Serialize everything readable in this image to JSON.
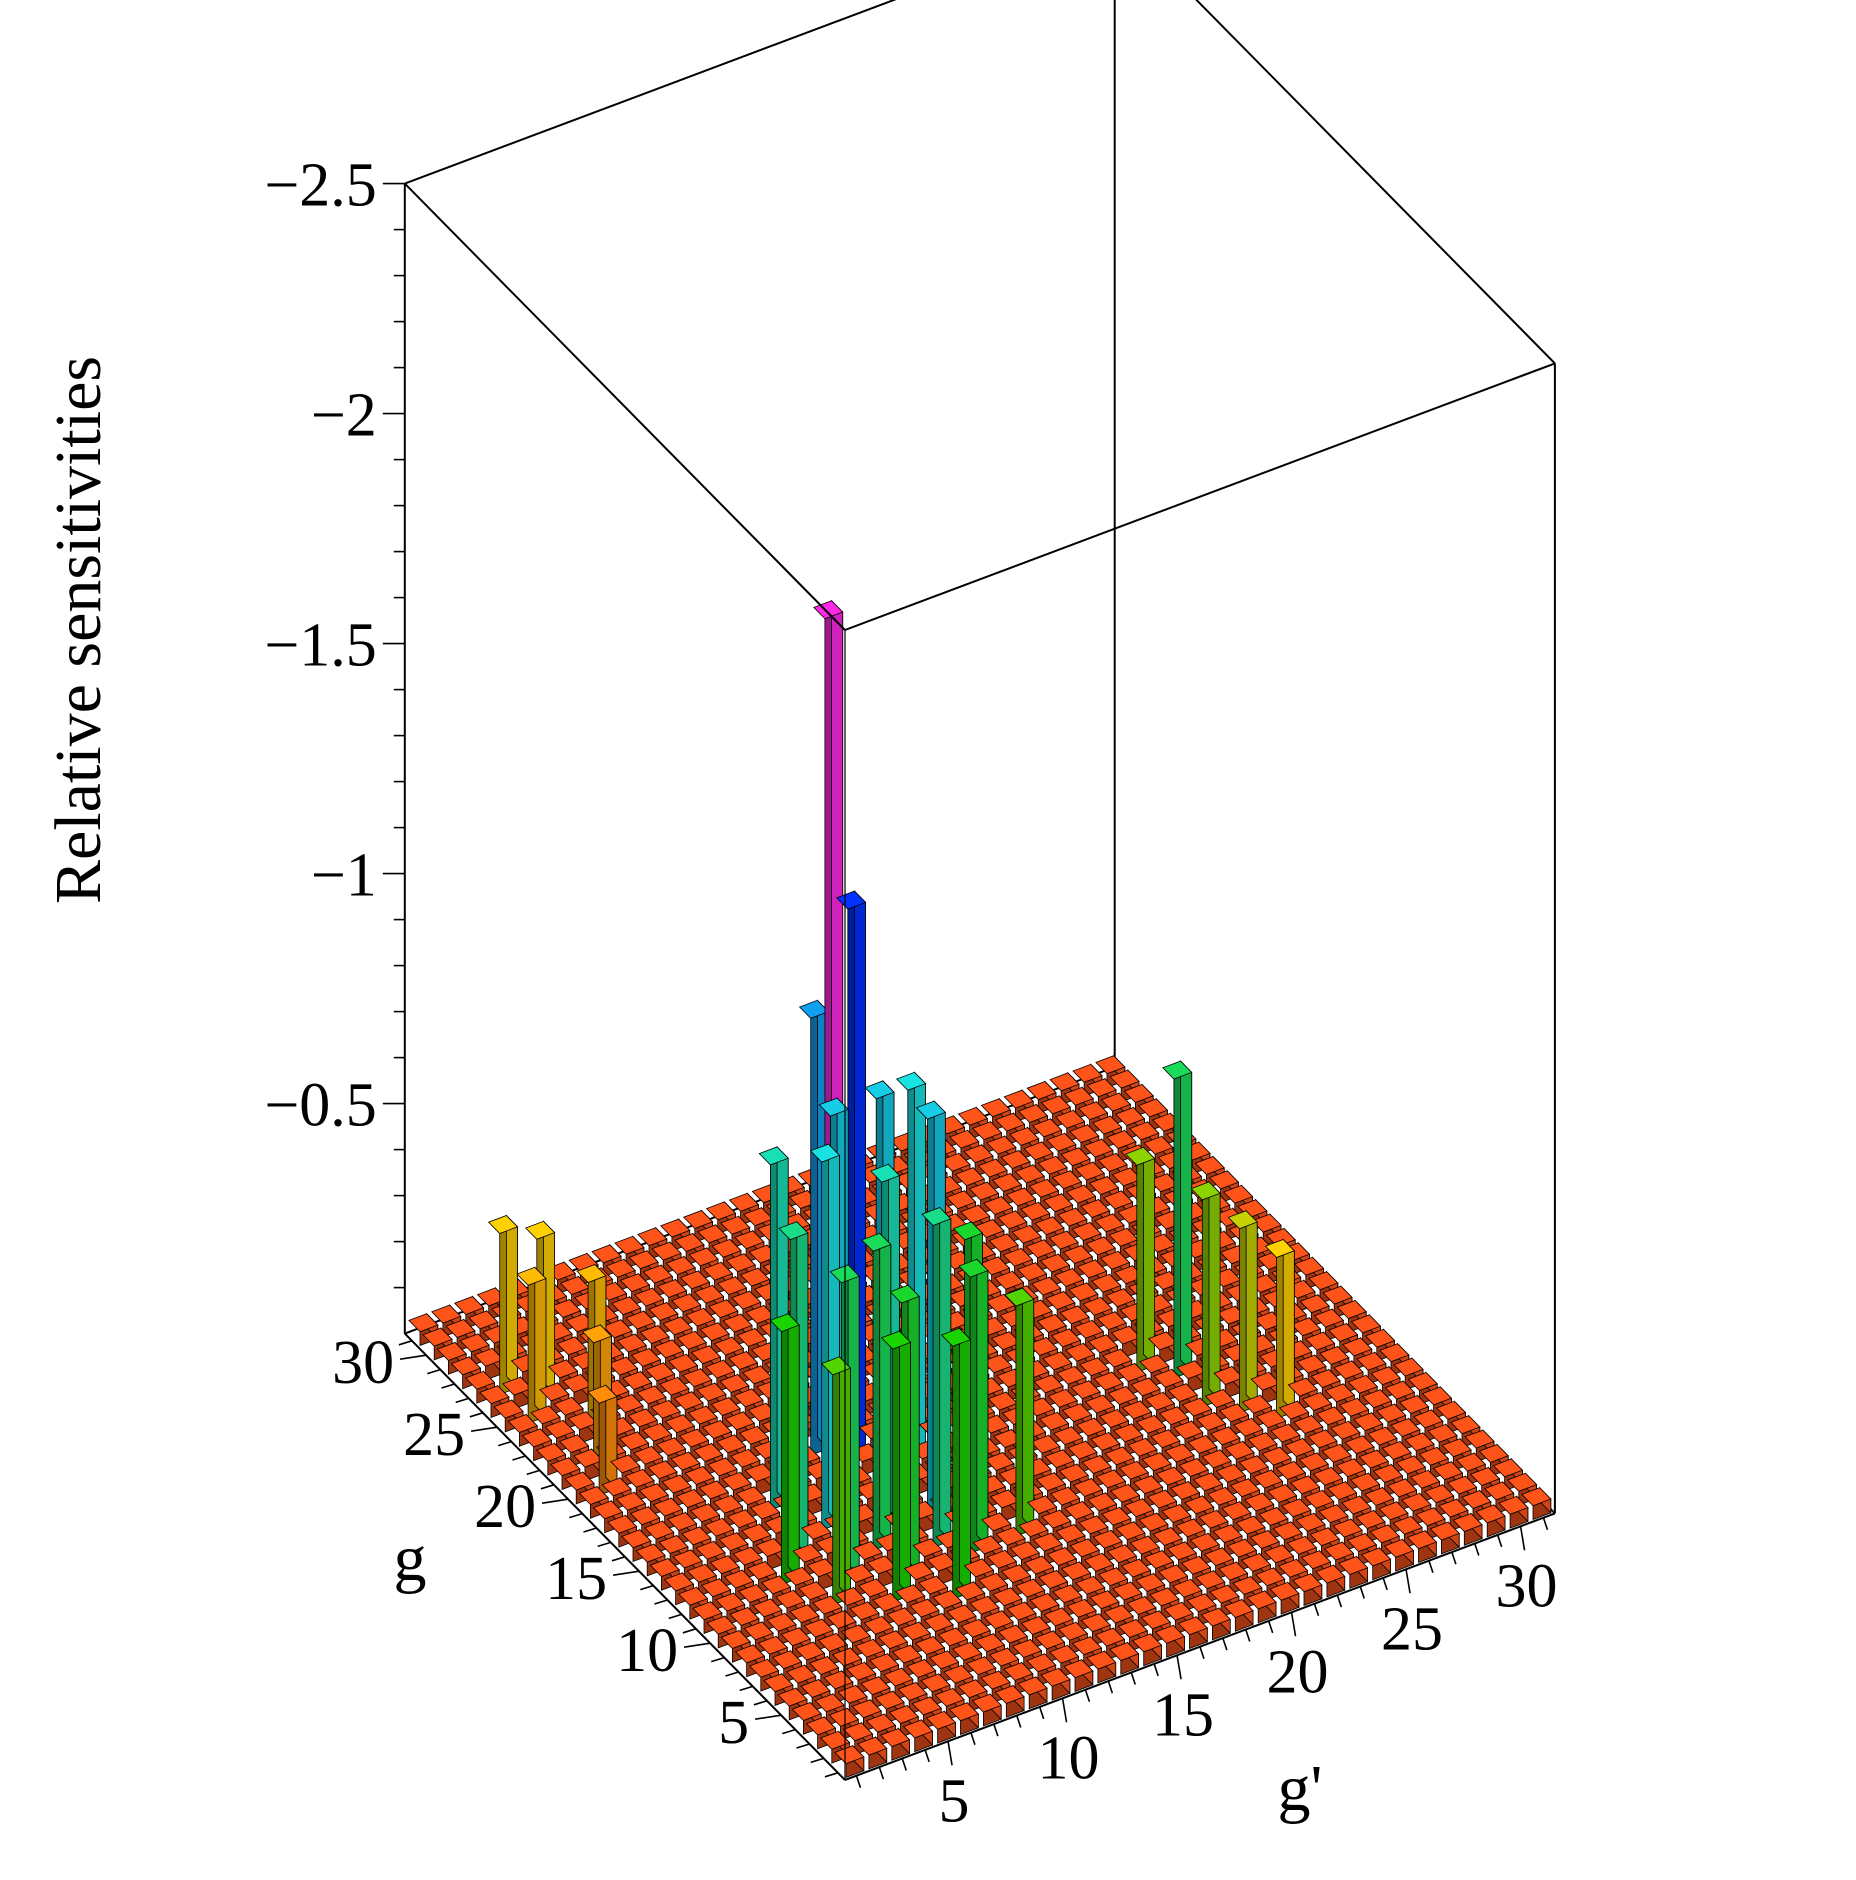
{
  "chart_data": {
    "type": "bar3d",
    "zlabel": "Relative sensitivities",
    "xlabel": "g'",
    "ylabel": "g",
    "x_range": [
      1,
      31
    ],
    "y_range": [
      1,
      31
    ],
    "zlim": [
      0,
      -2.5
    ],
    "x_ticks": [
      "5",
      "10",
      "15",
      "20",
      "25",
      "30"
    ],
    "y_ticks": [
      "5",
      "10",
      "15",
      "20",
      "25",
      "30"
    ],
    "z_ticks": [
      "-0.5",
      "-1",
      "-1.5",
      "-2",
      "-2.5"
    ],
    "grid": false,
    "legend": "none",
    "baseline_value": -0.03,
    "colors": {
      "low": "#ff4a1c",
      "mid_low": "#ffd100",
      "mid": "#1ad400",
      "mid_high": "#19e2e2",
      "high": "#0032ff",
      "peak": "#ff28e6"
    },
    "notable_bars": [
      {
        "g_prime": 10,
        "g": 17,
        "value": -1.85
      },
      {
        "g_prime": 11,
        "g": 17,
        "value": -1.2
      },
      {
        "g_prime": 10,
        "g": 18,
        "value": -0.95
      },
      {
        "g_prime": 11,
        "g": 15,
        "value": -0.85
      },
      {
        "g_prime": 9,
        "g": 15,
        "value": -0.85
      },
      {
        "g_prime": 12,
        "g": 13,
        "value": -0.85
      },
      {
        "g_prime": 8,
        "g": 14,
        "value": -0.8
      },
      {
        "g_prime": 13,
        "g": 16,
        "value": -0.8
      },
      {
        "g_prime": 10,
        "g": 13,
        "value": -0.75
      },
      {
        "g_prime": 7,
        "g": 16,
        "value": -0.75
      },
      {
        "g_prime": 6,
        "g": 13,
        "value": -0.7
      },
      {
        "g_prime": 11,
        "g": 11,
        "value": -0.7
      },
      {
        "g_prime": 9,
        "g": 12,
        "value": -0.65
      },
      {
        "g_prime": 7,
        "g": 11,
        "value": -0.65
      },
      {
        "g_prime": 12,
        "g": 10,
        "value": -0.6
      },
      {
        "g_prime": 9,
        "g": 10,
        "value": -0.6
      },
      {
        "g_prime": 13,
        "g": 12,
        "value": -0.6
      },
      {
        "g_prime": 5,
        "g": 12,
        "value": -0.55
      },
      {
        "g_prime": 8,
        "g": 9,
        "value": -0.55
      },
      {
        "g_prime": 10,
        "g": 8,
        "value": -0.55
      },
      {
        "g_prime": 14,
        "g": 10,
        "value": -0.5
      },
      {
        "g_prime": 6,
        "g": 10,
        "value": -0.5
      },
      {
        "g_prime": 24,
        "g": 15,
        "value": -0.65
      },
      {
        "g_prime": 23,
        "g": 16,
        "value": -0.45
      },
      {
        "g_prime": 24,
        "g": 13,
        "value": -0.45
      },
      {
        "g_prime": 25,
        "g": 12,
        "value": -0.4
      },
      {
        "g_prime": 26,
        "g": 11,
        "value": -0.35
      },
      {
        "g_prime": 2,
        "g": 27,
        "value": -0.35
      },
      {
        "g_prime": 3,
        "g": 26,
        "value": -0.35
      },
      {
        "g_prime": 4,
        "g": 24,
        "value": -0.3
      },
      {
        "g_prime": 2,
        "g": 25,
        "value": -0.3
      },
      {
        "g_prime": 3,
        "g": 22,
        "value": -0.25
      },
      {
        "g_prime": 2,
        "g": 20,
        "value": -0.2
      }
    ]
  }
}
